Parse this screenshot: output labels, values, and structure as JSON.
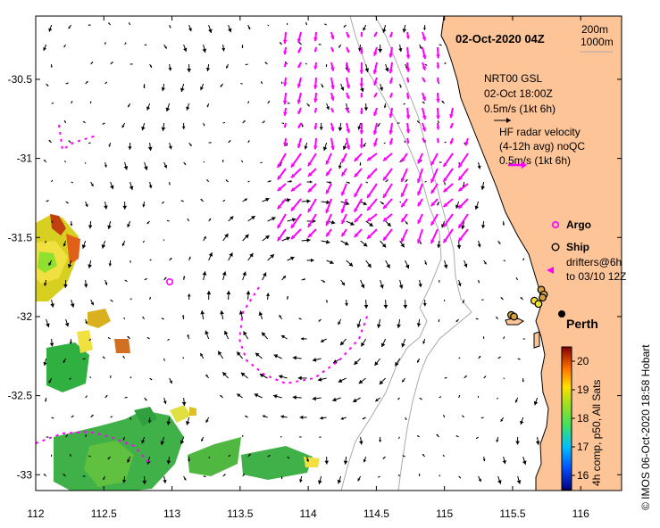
{
  "title": "02-Oct-2020 04Z",
  "bathymetry": {
    "contour_1": "200m",
    "contour_2": "1000m"
  },
  "gsl": {
    "name": "NRT00 GSL",
    "time": "02-Oct 18:00Z",
    "scale": "0.5m/s (1kt 6h)"
  },
  "hf": {
    "line1": "HF radar velocity",
    "line2": "(4-12h avg) noQC",
    "scale": "0.5m/s (1kt 6h)"
  },
  "legend": {
    "argo": "Argo",
    "ship": "Ship",
    "drifters_1": "drifters@6h",
    "drifters_2": "to 03/10 12Z"
  },
  "place": "Perth",
  "credit": "© IMOS 06-Oct-2020 18:58 Hobart",
  "colorbar": {
    "label": "4h comp, p50, All Sats",
    "ticks": [
      "16",
      "17",
      "18",
      "19",
      "20"
    ],
    "min": 15.5,
    "max": 20.5
  },
  "axes": {
    "x_ticks": [
      "112",
      "112.5",
      "113",
      "113.5",
      "114",
      "114.5",
      "115",
      "115.5",
      "116"
    ],
    "y_ticks": [
      "-30.5",
      "-31",
      "-31.5",
      "-32",
      "-32.5",
      "-33"
    ],
    "lon_range": [
      112,
      116.3
    ],
    "lat_range": [
      -30.1,
      -33.1
    ]
  },
  "colors": {
    "land": "#FDC498",
    "hf": "#FF00FF",
    "gsl": "#000000",
    "argo": "#FF00FF",
    "ship": "#000000",
    "contour": "#AAAAAA"
  },
  "ship_positions": [
    [
      115.71,
      -31.83
    ],
    [
      115.73,
      -31.86
    ],
    [
      115.72,
      -31.88
    ],
    [
      115.49,
      -31.99
    ],
    [
      115.51,
      -32.0
    ]
  ],
  "ship_yellow": [
    [
      115.66,
      -31.9
    ],
    [
      115.69,
      -31.92
    ]
  ],
  "perth": [
    115.86,
    -31.95
  ],
  "argo_float": [
    112.98,
    -31.74
  ]
}
